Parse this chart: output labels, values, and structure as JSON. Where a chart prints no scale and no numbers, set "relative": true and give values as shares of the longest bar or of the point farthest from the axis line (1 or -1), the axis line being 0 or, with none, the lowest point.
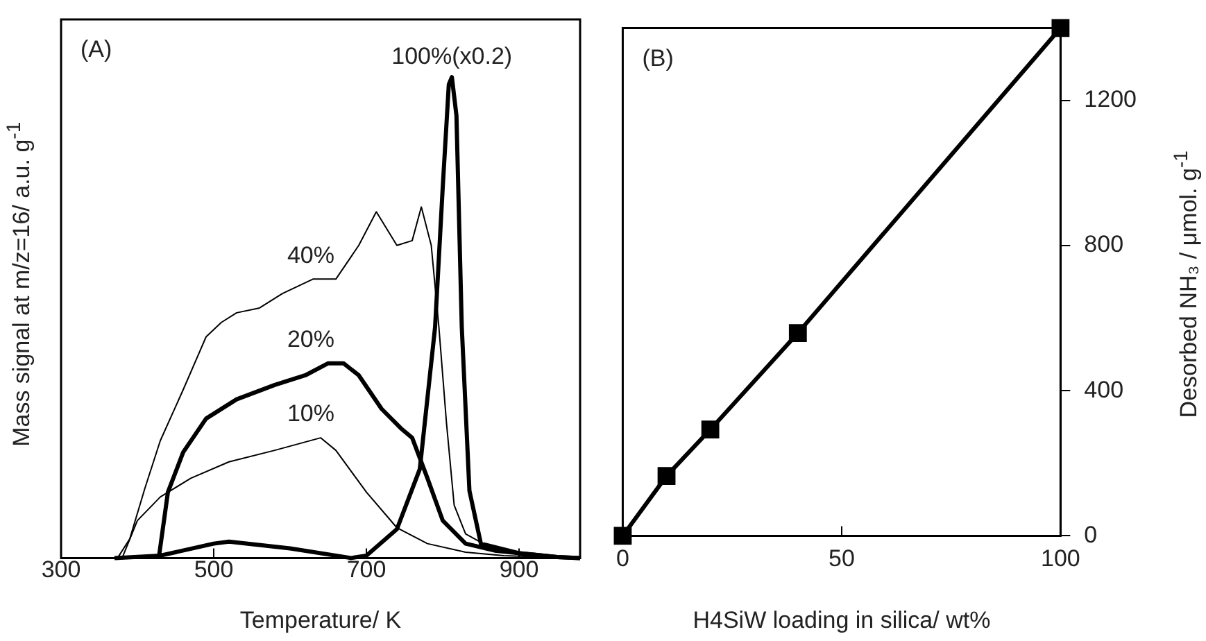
{
  "chart_data": [
    {
      "type": "line",
      "relative": true,
      "xlabel": "Temperature/ K",
      "ylabel": "Mass signal at m/z=16/ a.u. g$^{-1}$",
      "xlim": [
        300,
        980
      ],
      "xticks": [
        300,
        500,
        700,
        900
      ],
      "annotations": [
        "(A)"
      ],
      "marker": "none",
      "legend": false,
      "series": [
        {
          "name": "100%(x0.2)",
          "color": "#000000",
          "x": [
            370,
            430,
            500,
            520,
            600,
            680,
            700,
            740,
            770,
            790,
            800,
            808,
            812,
            818,
            825,
            835,
            850,
            900,
            950,
            980
          ],
          "values": [
            0,
            0.005,
            0.03,
            0.034,
            0.02,
            0,
            0.005,
            0.06,
            0.185,
            0.48,
            0.77,
            0.985,
            1,
            0.92,
            0.48,
            0.14,
            0.03,
            0.01,
            0.002,
            0
          ]
        },
        {
          "name": "40%",
          "color": "#000000",
          "x": [
            374,
            390,
            410,
            430,
            460,
            490,
            510,
            530,
            560,
            590,
            630,
            660,
            690,
            713,
            740,
            760,
            772,
            785,
            795,
            805,
            815,
            830,
            860,
            900,
            950,
            980
          ],
          "values": [
            0,
            0.04,
            0.146,
            0.244,
            0.35,
            0.46,
            0.49,
            0.51,
            0.52,
            0.55,
            0.58,
            0.58,
            0.65,
            0.72,
            0.65,
            0.66,
            0.73,
            0.65,
            0.48,
            0.28,
            0.11,
            0.05,
            0.024,
            0.01,
            0.002,
            0
          ]
        },
        {
          "name": "20%",
          "color": "#000000",
          "x": [
            428,
            440,
            460,
            490,
            530,
            580,
            620,
            650,
            670,
            690,
            720,
            745,
            760,
            780,
            800,
            830,
            870,
            950,
            980
          ],
          "values": [
            0,
            0.137,
            0.22,
            0.29,
            0.33,
            0.36,
            0.38,
            0.405,
            0.405,
            0.38,
            0.31,
            0.27,
            0.25,
            0.166,
            0.078,
            0.03,
            0.015,
            0.002,
            0
          ]
        },
        {
          "name": "10%",
          "color": "#000000",
          "x": [
            380,
            400,
            430,
            470,
            520,
            580,
            640,
            660,
            700,
            740,
            780,
            830,
            880,
            980
          ],
          "values": [
            0,
            0.078,
            0.127,
            0.166,
            0.2,
            0.224,
            0.25,
            0.224,
            0.137,
            0.063,
            0.03,
            0.012,
            0.005,
            0
          ]
        }
      ]
    },
    {
      "type": "line",
      "xlabel": "H4SiW loading in silica/ wt%",
      "y2label": "Desorbed NH₃ / μmol. g$^{-1}$",
      "xlim": [
        0,
        100
      ],
      "xticks": [
        0,
        50,
        100
      ],
      "y2lim": [
        0,
        1400
      ],
      "y2ticks": [
        0,
        400,
        800,
        1200
      ],
      "annotations": [
        "(B)"
      ],
      "marker": "square",
      "legend": false,
      "series": [
        {
          "color": "#000000",
          "axis": "y2",
          "x": [
            0,
            10,
            20,
            40,
            100
          ],
          "values": [
            0,
            165,
            293,
            559,
            1400
          ]
        }
      ]
    }
  ]
}
